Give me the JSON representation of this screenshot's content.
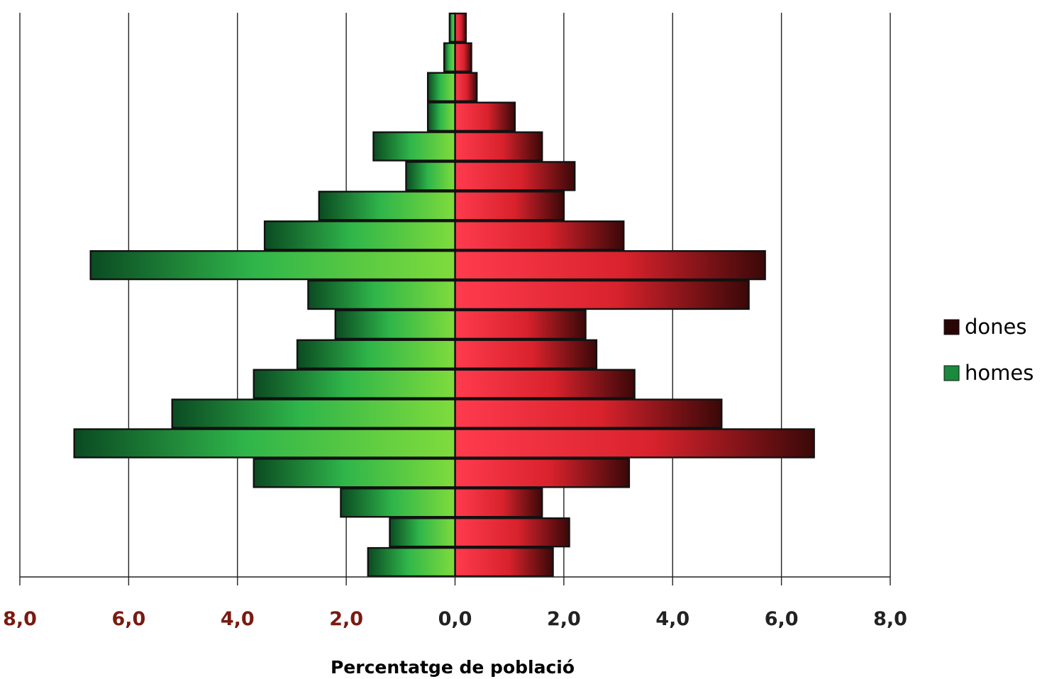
{
  "chart_data": {
    "type": "bar",
    "subtype": "population-pyramid",
    "orientation": "horizontal",
    "xlabel": "Percentatge de població",
    "xlim": [
      -8,
      8
    ],
    "x_ticks": [
      {
        "value": -8,
        "label": "8,0",
        "color": "#7a1a10"
      },
      {
        "value": -6,
        "label": "6,0",
        "color": "#7a1a10"
      },
      {
        "value": -4,
        "label": "4,0",
        "color": "#7a1a10"
      },
      {
        "value": -2,
        "label": "2,0",
        "color": "#7a1a10"
      },
      {
        "value": 0,
        "label": "0,0",
        "color": "#222222"
      },
      {
        "value": 2,
        "label": "2,0",
        "color": "#222222"
      },
      {
        "value": 4,
        "label": "4,0",
        "color": "#222222"
      },
      {
        "value": 6,
        "label": "6,0",
        "color": "#222222"
      },
      {
        "value": 8,
        "label": "8,0",
        "color": "#222222"
      }
    ],
    "grid": true,
    "legend_position": "right",
    "bar_order": "top-to-bottom",
    "series": [
      {
        "name": "dones",
        "side": "right",
        "color_light": "#ff3b4e",
        "color_dark": "#3a0808",
        "legend_color": "#2a0505",
        "values": [
          0.2,
          0.3,
          0.4,
          1.1,
          1.6,
          2.2,
          2.0,
          3.1,
          5.7,
          5.4,
          2.4,
          2.6,
          3.3,
          4.9,
          6.6,
          3.2,
          1.6,
          2.1,
          1.8
        ]
      },
      {
        "name": "homes",
        "side": "left",
        "color_light": "#7fdc3c",
        "color_dark": "#0b4a22",
        "legend_color": "#1a8a3c",
        "values": [
          0.1,
          0.2,
          0.5,
          0.5,
          1.5,
          0.9,
          2.5,
          3.5,
          6.7,
          2.7,
          2.2,
          2.9,
          3.7,
          5.2,
          7.0,
          3.7,
          2.1,
          1.2,
          1.6
        ]
      }
    ]
  }
}
